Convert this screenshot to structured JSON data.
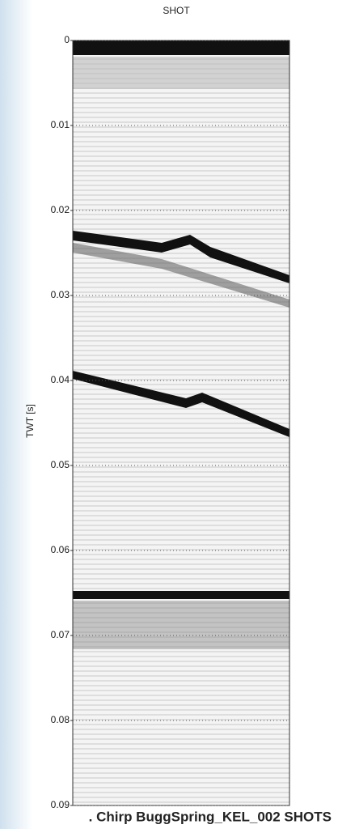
{
  "chart_data": {
    "type": "seismic",
    "title": "SHOT",
    "ylabel": "TWT [s]",
    "caption": ". Chirp BuggSpring_KEL_002 SHOTS",
    "ylim": [
      0,
      0.09
    ],
    "yticks": [
      0,
      0.01,
      0.02,
      0.03,
      0.04,
      0.05,
      0.06,
      0.07,
      0.08,
      0.09
    ],
    "y_inverted": true,
    "grid": true
  }
}
